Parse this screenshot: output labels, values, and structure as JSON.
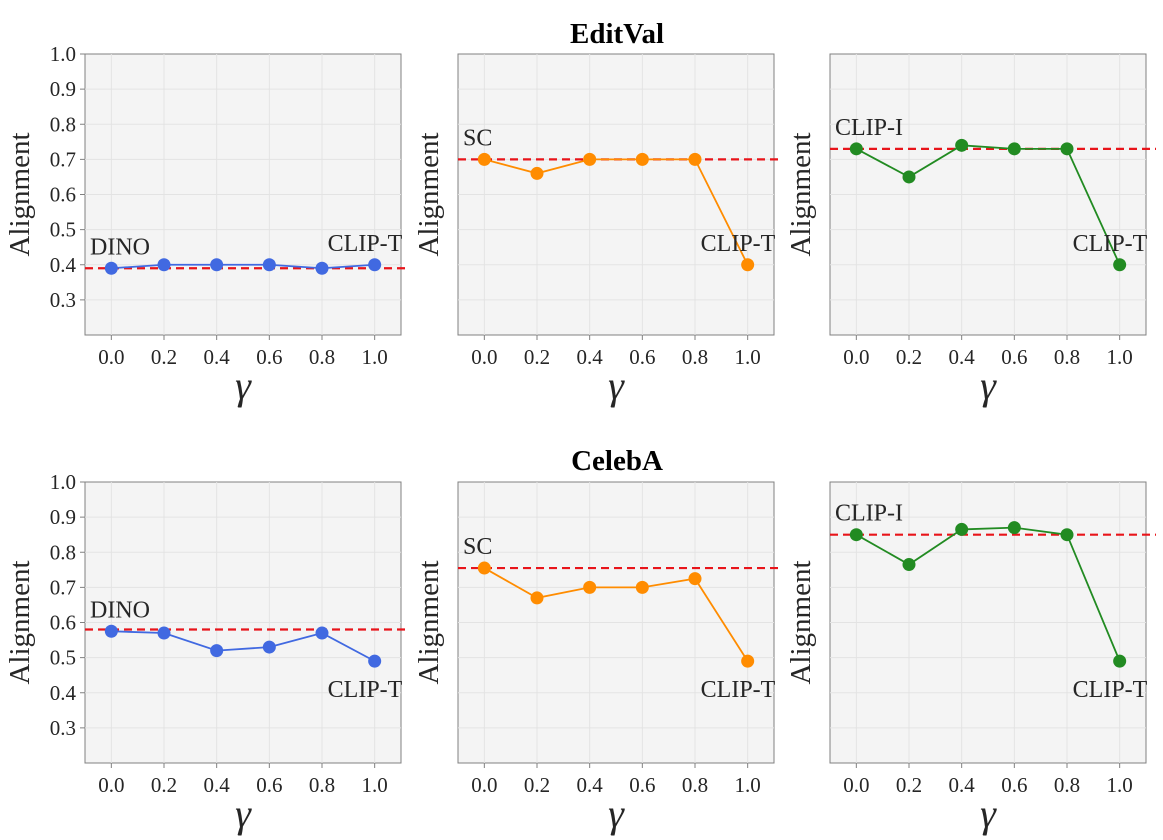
{
  "figure": {
    "row_titles": [
      "EditVal",
      "CelebA"
    ]
  },
  "chart_data": [
    {
      "id": "editval-dino",
      "type": "line",
      "row": 0,
      "col": 0,
      "color": "#4169e1",
      "ref_color": "#e8141a",
      "x": [
        0.0,
        0.2,
        0.4,
        0.6,
        0.8,
        1.0
      ],
      "y": [
        0.39,
        0.4,
        0.4,
        0.4,
        0.39,
        0.4
      ],
      "reference": 0.39,
      "xlim": [
        -0.1,
        1.1
      ],
      "ylim": [
        0.2,
        1.0
      ],
      "xticks": [
        "0.0",
        "0.2",
        "0.4",
        "0.6",
        "0.8",
        "1.0"
      ],
      "yticks": [
        "1.0",
        "0.9",
        "0.8",
        "0.7",
        "0.6",
        "0.5",
        "0.4",
        "0.3"
      ],
      "ylabel": "Alignment",
      "xlabel": "γ",
      "annotation_left": "DINO",
      "annotation_right": "CLIP-T"
    },
    {
      "id": "editval-sc",
      "type": "line",
      "row": 0,
      "col": 1,
      "color": "#ff8c00",
      "ref_color": "#e8141a",
      "x": [
        0.0,
        0.2,
        0.4,
        0.6,
        0.8,
        1.0
      ],
      "y": [
        0.7,
        0.66,
        0.7,
        0.7,
        0.7,
        0.4
      ],
      "reference": 0.7,
      "xlim": [
        -0.1,
        1.1
      ],
      "ylim": [
        0.2,
        1.0
      ],
      "xticks": [
        "0.0",
        "0.2",
        "0.4",
        "0.6",
        "0.8",
        "1.0"
      ],
      "yticks": [],
      "ylabel": "Alignment",
      "xlabel": "γ",
      "annotation_left": "SC",
      "annotation_right": "CLIP-T"
    },
    {
      "id": "editval-clipi",
      "type": "line",
      "row": 0,
      "col": 2,
      "color": "#228b22",
      "ref_color": "#e8141a",
      "x": [
        0.0,
        0.2,
        0.4,
        0.6,
        0.8,
        1.0
      ],
      "y": [
        0.73,
        0.65,
        0.74,
        0.73,
        0.73,
        0.4
      ],
      "reference": 0.73,
      "xlim": [
        -0.1,
        1.1
      ],
      "ylim": [
        0.2,
        1.0
      ],
      "xticks": [
        "0.0",
        "0.2",
        "0.4",
        "0.6",
        "0.8",
        "1.0"
      ],
      "yticks": [],
      "ylabel": "Alignment",
      "xlabel": "γ",
      "annotation_left": "CLIP-I",
      "annotation_right": "CLIP-T"
    },
    {
      "id": "celeba-dino",
      "type": "line",
      "row": 1,
      "col": 0,
      "color": "#4169e1",
      "ref_color": "#e8141a",
      "x": [
        0.0,
        0.2,
        0.4,
        0.6,
        0.8,
        1.0
      ],
      "y": [
        0.575,
        0.57,
        0.52,
        0.53,
        0.57,
        0.49
      ],
      "reference": 0.58,
      "xlim": [
        -0.1,
        1.1
      ],
      "ylim": [
        0.2,
        1.0
      ],
      "xticks": [
        "0.0",
        "0.2",
        "0.4",
        "0.6",
        "0.8",
        "1.0"
      ],
      "yticks": [
        "1.0",
        "0.9",
        "0.8",
        "0.7",
        "0.6",
        "0.5",
        "0.4",
        "0.3"
      ],
      "ylabel": "Alignment",
      "xlabel": "γ",
      "annotation_left": "DINO",
      "annotation_right": "CLIP-T"
    },
    {
      "id": "celeba-sc",
      "type": "line",
      "row": 1,
      "col": 1,
      "color": "#ff8c00",
      "ref_color": "#e8141a",
      "x": [
        0.0,
        0.2,
        0.4,
        0.6,
        0.8,
        1.0
      ],
      "y": [
        0.755,
        0.67,
        0.7,
        0.7,
        0.725,
        0.49
      ],
      "reference": 0.755,
      "xlim": [
        -0.1,
        1.1
      ],
      "ylim": [
        0.2,
        1.0
      ],
      "xticks": [
        "0.0",
        "0.2",
        "0.4",
        "0.6",
        "0.8",
        "1.0"
      ],
      "yticks": [],
      "ylabel": "Alignment",
      "xlabel": "γ",
      "annotation_left": "SC",
      "annotation_right": "CLIP-T"
    },
    {
      "id": "celeba-clipi",
      "type": "line",
      "row": 1,
      "col": 2,
      "color": "#228b22",
      "ref_color": "#e8141a",
      "x": [
        0.0,
        0.2,
        0.4,
        0.6,
        0.8,
        1.0
      ],
      "y": [
        0.85,
        0.765,
        0.865,
        0.87,
        0.85,
        0.49
      ],
      "reference": 0.85,
      "xlim": [
        -0.1,
        1.1
      ],
      "ylim": [
        0.2,
        1.0
      ],
      "xticks": [
        "0.0",
        "0.2",
        "0.4",
        "0.6",
        "0.8",
        "1.0"
      ],
      "yticks": [],
      "ylabel": "Alignment",
      "xlabel": "γ",
      "annotation_left": "CLIP-I",
      "annotation_right": "CLIP-T"
    }
  ]
}
